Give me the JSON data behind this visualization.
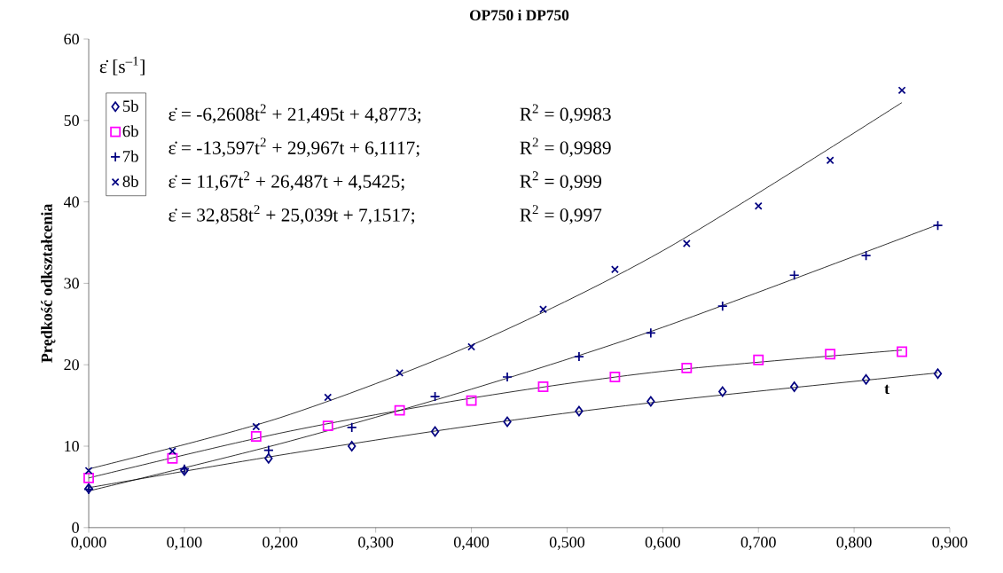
{
  "chart_data": {
    "type": "scatter",
    "title": "OP750 i DP750",
    "xlabel": "t",
    "ylabel": "Prędkość odkształcenia",
    "annotations": [
      "ε̇  [s$^{–1}$]",
      "ε̇ = -6,2608t$^{2}$ + 21,495t + 4,8773;",
      "ε̇ = -13,597t$^{2}$ + 29,967t + 6,1117;",
      "ε̇ = 11,67t$^{2}$ + 26,487t + 4,5425;",
      "ε̇ = 32,858t$^{2}$ + 25,039t + 7,1517;",
      "R$^{2}$ = 0,9983",
      "R$^{2}$ = 0,9989",
      "R$^{2}$ = 0,999",
      "R$^{2}$ = 0,997"
    ],
    "xlim": [
      0,
      0.9
    ],
    "ylim": [
      0,
      60
    ],
    "xticks": [
      {
        "value": 0,
        "label": "0,000"
      },
      {
        "value": 0.1,
        "label": "0,100"
      },
      {
        "value": 0.2,
        "label": "0,200"
      },
      {
        "value": 0.3,
        "label": "0,300"
      },
      {
        "value": 0.4,
        "label": "0,400"
      },
      {
        "value": 0.5,
        "label": "0,500"
      },
      {
        "value": 0.6,
        "label": "0,600"
      },
      {
        "value": 0.7,
        "label": "0,700"
      },
      {
        "value": 0.8,
        "label": "0,800"
      },
      {
        "value": 0.9,
        "label": "0,900"
      }
    ],
    "yticks": [
      0,
      10,
      20,
      30,
      40,
      50,
      60
    ],
    "grid": false,
    "legend": "top left",
    "series": [
      {
        "name": "5b",
        "marker": "diamond",
        "color": "#000080",
        "x": [
          0,
          0.1,
          0.188,
          0.275,
          0.362,
          0.4375,
          0.5125,
          0.5875,
          0.6625,
          0.7375,
          0.8125,
          0.8875
        ],
        "values": [
          4.8,
          7.0,
          8.5,
          10.0,
          11.8,
          13.0,
          14.3,
          15.5,
          16.7,
          17.3,
          18.2,
          18.9
        ]
      },
      {
        "name": "6b",
        "marker": "square",
        "color": "#ff00ff",
        "x": [
          0,
          0.0875,
          0.175,
          0.25,
          0.325,
          0.4,
          0.475,
          0.55,
          0.625,
          0.7,
          0.775,
          0.85
        ],
        "values": [
          6.1,
          8.5,
          11.2,
          12.5,
          14.4,
          15.6,
          17.3,
          18.5,
          19.6,
          20.6,
          21.3,
          21.6
        ]
      },
      {
        "name": "7b",
        "marker": "plus",
        "color": "#000080",
        "x": [
          0,
          0.1,
          0.188,
          0.275,
          0.362,
          0.4375,
          0.5125,
          0.5875,
          0.6625,
          0.7375,
          0.8125,
          0.8875
        ],
        "values": [
          4.7,
          7.2,
          9.5,
          12.3,
          16.1,
          18.5,
          21.0,
          23.9,
          27.2,
          31.0,
          33.4,
          37.1
        ]
      },
      {
        "name": "8b",
        "marker": "cross",
        "color": "#000080",
        "x": [
          0,
          0.0875,
          0.175,
          0.25,
          0.325,
          0.4,
          0.475,
          0.55,
          0.625,
          0.7,
          0.775,
          0.85
        ],
        "values": [
          7.0,
          9.4,
          12.4,
          16.0,
          19.0,
          22.2,
          26.8,
          31.7,
          34.9,
          39.5,
          45.1,
          53.7
        ]
      },
      {
        "type": "line",
        "marker": "none",
        "color": "#000000",
        "x": [
          0,
          0.2,
          0.4,
          0.6,
          0.8875
        ],
        "values": [
          4.9,
          8.9,
          12.5,
          15.5,
          19.0
        ]
      },
      {
        "type": "line",
        "marker": "none",
        "color": "#000000",
        "x": [
          0,
          0.2,
          0.4,
          0.6,
          0.85
        ],
        "values": [
          6.1,
          11.6,
          15.9,
          19.2,
          21.8
        ]
      },
      {
        "type": "line",
        "marker": "none",
        "color": "#000000",
        "x": [
          0,
          0.2,
          0.4,
          0.6,
          0.8875
        ],
        "values": [
          4.5,
          10.3,
          17.0,
          24.6,
          37.2
        ]
      },
      {
        "type": "line",
        "marker": "none",
        "color": "#000000",
        "x": [
          0,
          0.2,
          0.4,
          0.6,
          0.85
        ],
        "values": [
          7.2,
          13.5,
          22.4,
          34.0,
          52.2
        ]
      }
    ]
  }
}
